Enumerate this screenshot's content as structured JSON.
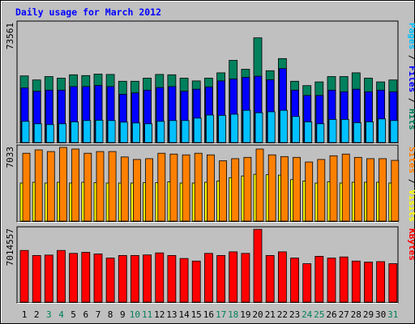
{
  "colors": {
    "background": "#c0c0c0",
    "panel": "#c0c0c0",
    "title": "#0000ff",
    "hits": "#00805c",
    "files": "#0000ff",
    "pages": "#00c0ff",
    "visits": "#ffff00",
    "sites": "#ff8000",
    "kbytes": "#ff0000",
    "weekend_label": "#00805c",
    "weekday_label": "#000000"
  },
  "chart_data": {
    "type": "bar",
    "title": "Daily usage for March 2012",
    "categories": [
      "1",
      "2",
      "3",
      "4",
      "5",
      "6",
      "7",
      "8",
      "9",
      "10",
      "11",
      "12",
      "13",
      "14",
      "15",
      "16",
      "17",
      "18",
      "19",
      "20",
      "21",
      "22",
      "23",
      "24",
      "25",
      "26",
      "27",
      "28",
      "29",
      "30",
      "31"
    ],
    "weekend_days": [
      "3",
      "4",
      "10",
      "11",
      "17",
      "18",
      "24",
      "25",
      "31"
    ],
    "panels": [
      {
        "id": "hits_files_pages",
        "ymax": 73561,
        "ymax_label": "73561",
        "right_label": [
          "Pages",
          "Files",
          "Hits"
        ],
        "series": [
          {
            "name": "Hits",
            "color_key": "hits",
            "values": [
              41200,
              38700,
              40800,
              39800,
              41900,
              41400,
              42300,
              42100,
              37900,
              37900,
              39800,
              42100,
              41900,
              39800,
              38100,
              39800,
              43100,
              50800,
              45300,
              64700,
              44400,
              51900,
              37900,
              35200,
              37500,
              40800,
              40800,
              43100,
              39800,
              37500,
              38700
            ]
          },
          {
            "name": "Files",
            "color_key": "files",
            "values": [
              33800,
              31700,
              32400,
              32400,
              34600,
              34600,
              35300,
              34600,
              29800,
              30700,
              32400,
              34000,
              34600,
              31700,
              33000,
              34400,
              38100,
              39300,
              40300,
              41000,
              38800,
              45700,
              32400,
              29100,
              29100,
              32400,
              31400,
              33000,
              31400,
              32400,
              31400
            ]
          },
          {
            "name": "Pages",
            "color_key": "pages",
            "values": [
              13100,
              11600,
              11100,
              11600,
              12800,
              13600,
              13800,
              13600,
              12600,
              12100,
              11600,
              13100,
              13600,
              13600,
              15100,
              17000,
              16800,
              17500,
              19900,
              18400,
              19000,
              19900,
              16100,
              12800,
              11600,
              14300,
              14300,
              12300,
              12800,
              14600,
              13600
            ]
          }
        ]
      },
      {
        "id": "visits_sites",
        "ymax": 7033,
        "ymax_label": "7033",
        "right_label": [
          "Sites",
          "Visits"
        ],
        "series": [
          {
            "name": "Visits",
            "color_key": "visits",
            "values": [
              3630,
              3710,
              3630,
              3710,
              3630,
              3710,
              3670,
              3630,
              3630,
              3630,
              3670,
              3670,
              3750,
              3630,
              3630,
              3710,
              3830,
              4150,
              4310,
              4470,
              4430,
              4390,
              3960,
              3830,
              3630,
              3760,
              3630,
              3710,
              3710,
              3710,
              3630
            ]
          },
          {
            "name": "Sites",
            "color_key": "sites",
            "values": [
              6480,
              6800,
              6640,
              7030,
              6880,
              6480,
              6640,
              6640,
              6120,
              5880,
              5960,
              6480,
              6400,
              6320,
              6480,
              6320,
              5760,
              5960,
              6080,
              6880,
              6320,
              6160,
              6080,
              5640,
              5880,
              6240,
              6400,
              6080,
              5960,
              5960,
              5800
            ]
          }
        ]
      },
      {
        "id": "kbytes",
        "ymax": 7014557,
        "ymax_label": "7014557",
        "right_label": [
          "KBytes"
        ],
        "series": [
          {
            "name": "KBytes",
            "color_key": "kbytes",
            "values": [
              4970000,
              4490000,
              4530000,
              4970000,
              4690000,
              4790000,
              4640000,
              4240000,
              4490000,
              4490000,
              4540000,
              4740000,
              4490000,
              4200000,
              3950000,
              4690000,
              4490000,
              4840000,
              4690000,
              7010000,
              4490000,
              4840000,
              4240000,
              3700000,
              4410000,
              4240000,
              4350000,
              3950000,
              3850000,
              3900000,
              3700000
            ]
          }
        ]
      }
    ]
  }
}
